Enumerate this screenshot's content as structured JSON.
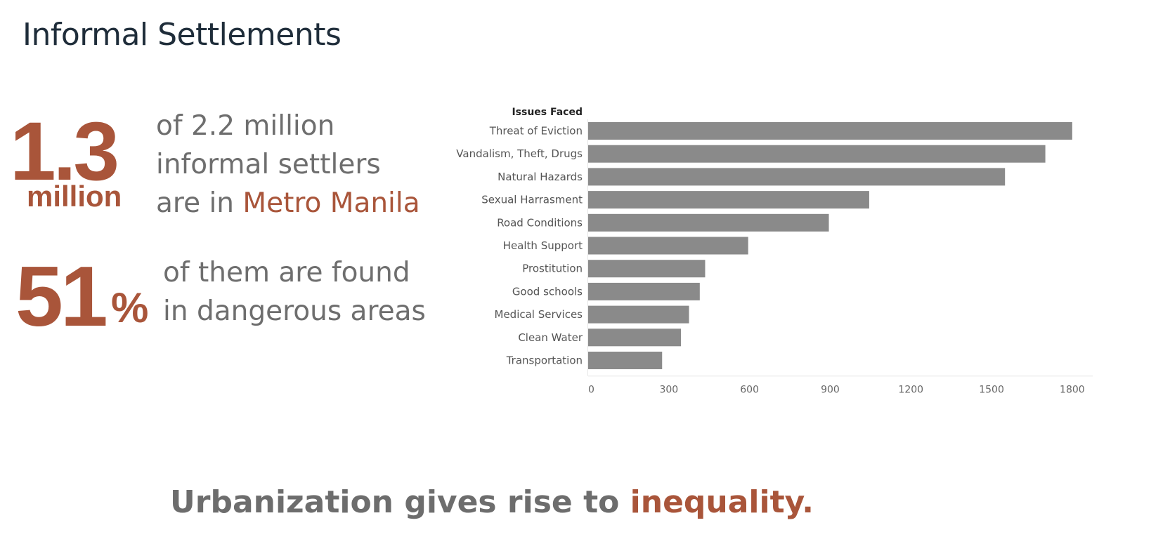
{
  "page": {
    "title": "Informal Settlements"
  },
  "stat1": {
    "number": "1.3",
    "unit": "million",
    "line1": "of 2.2 million",
    "line2": "informal settlers",
    "line3_prefix": "are in ",
    "line3_accent": "Metro Manila"
  },
  "stat2": {
    "number": "51",
    "unit": "%",
    "line1": "of them are found",
    "line2": "in dangerous areas"
  },
  "tagline": {
    "prefix": "Urbanization gives rise to ",
    "accent": "inequality."
  },
  "colors": {
    "accent": "#a9553a",
    "bar": "#8a8a8a",
    "title": "#1f2d3a",
    "text": "#6e6e6e"
  },
  "chart_data": {
    "type": "bar",
    "orientation": "horizontal",
    "category_header": "Issues Faced",
    "categories": [
      "Threat of Eviction",
      "Vandalism, Theft, Drugs",
      "Natural Hazards",
      "Sexual Harrasment",
      "Road Conditions",
      "Health Support",
      "Prostitution",
      "Good schools",
      "Medical Services",
      "Clean Water",
      "Transportation"
    ],
    "values": [
      1800,
      1700,
      1550,
      1045,
      895,
      595,
      435,
      415,
      375,
      345,
      275
    ],
    "xticks": [
      0,
      300,
      600,
      900,
      1200,
      1500,
      1800
    ],
    "xlim": [
      0,
      1850
    ],
    "grid": false,
    "xlabel": "",
    "ylabel": ""
  }
}
